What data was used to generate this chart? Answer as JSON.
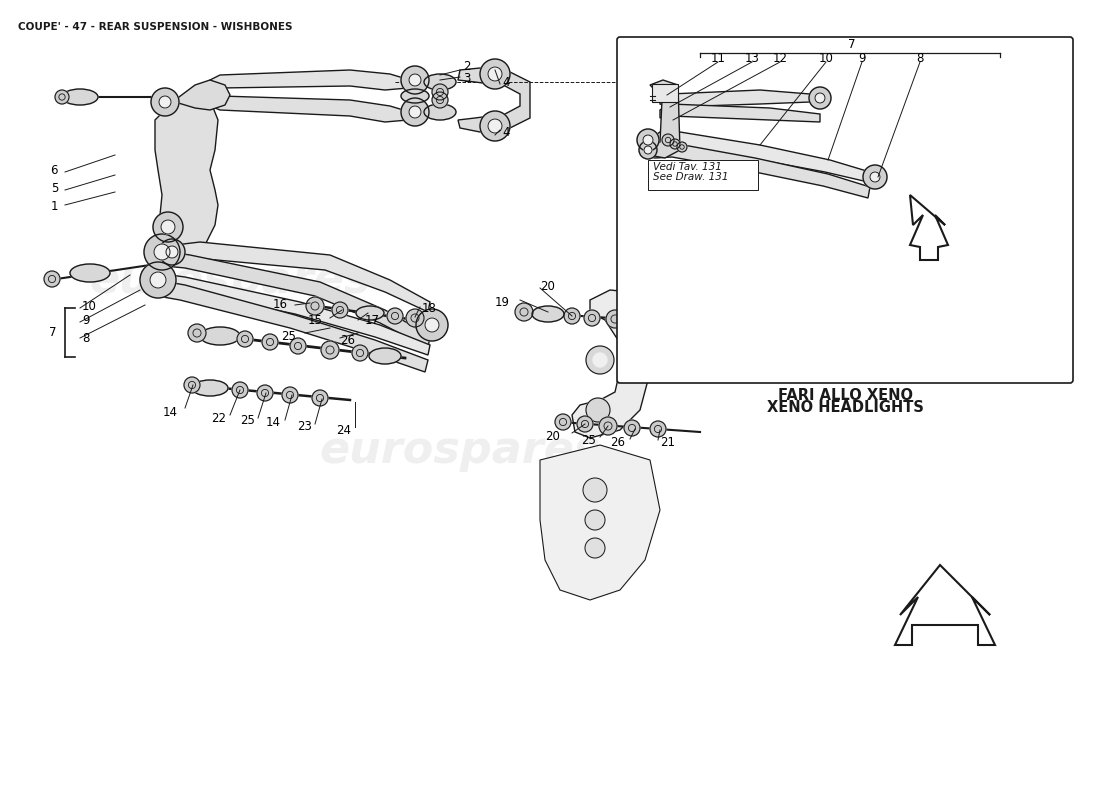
{
  "title": "COUPE' - 47 - REAR SUSPENSION - WISHBONES",
  "title_fontsize": 7.5,
  "background_color": "#ffffff",
  "text_color": "#000000",
  "line_color": "#1a1a1a",
  "label_fontsize": 8.5,
  "small_fontsize": 7.5,
  "inset_ref_line1": "Vedi Tav. 131",
  "inset_ref_line2": "See Draw. 131",
  "inset_label_line1": "FARI ALLO XENO",
  "inset_label_line2": "XENO HEADLIGHTS",
  "figure_width": 11.0,
  "figure_height": 8.0,
  "dpi": 100
}
